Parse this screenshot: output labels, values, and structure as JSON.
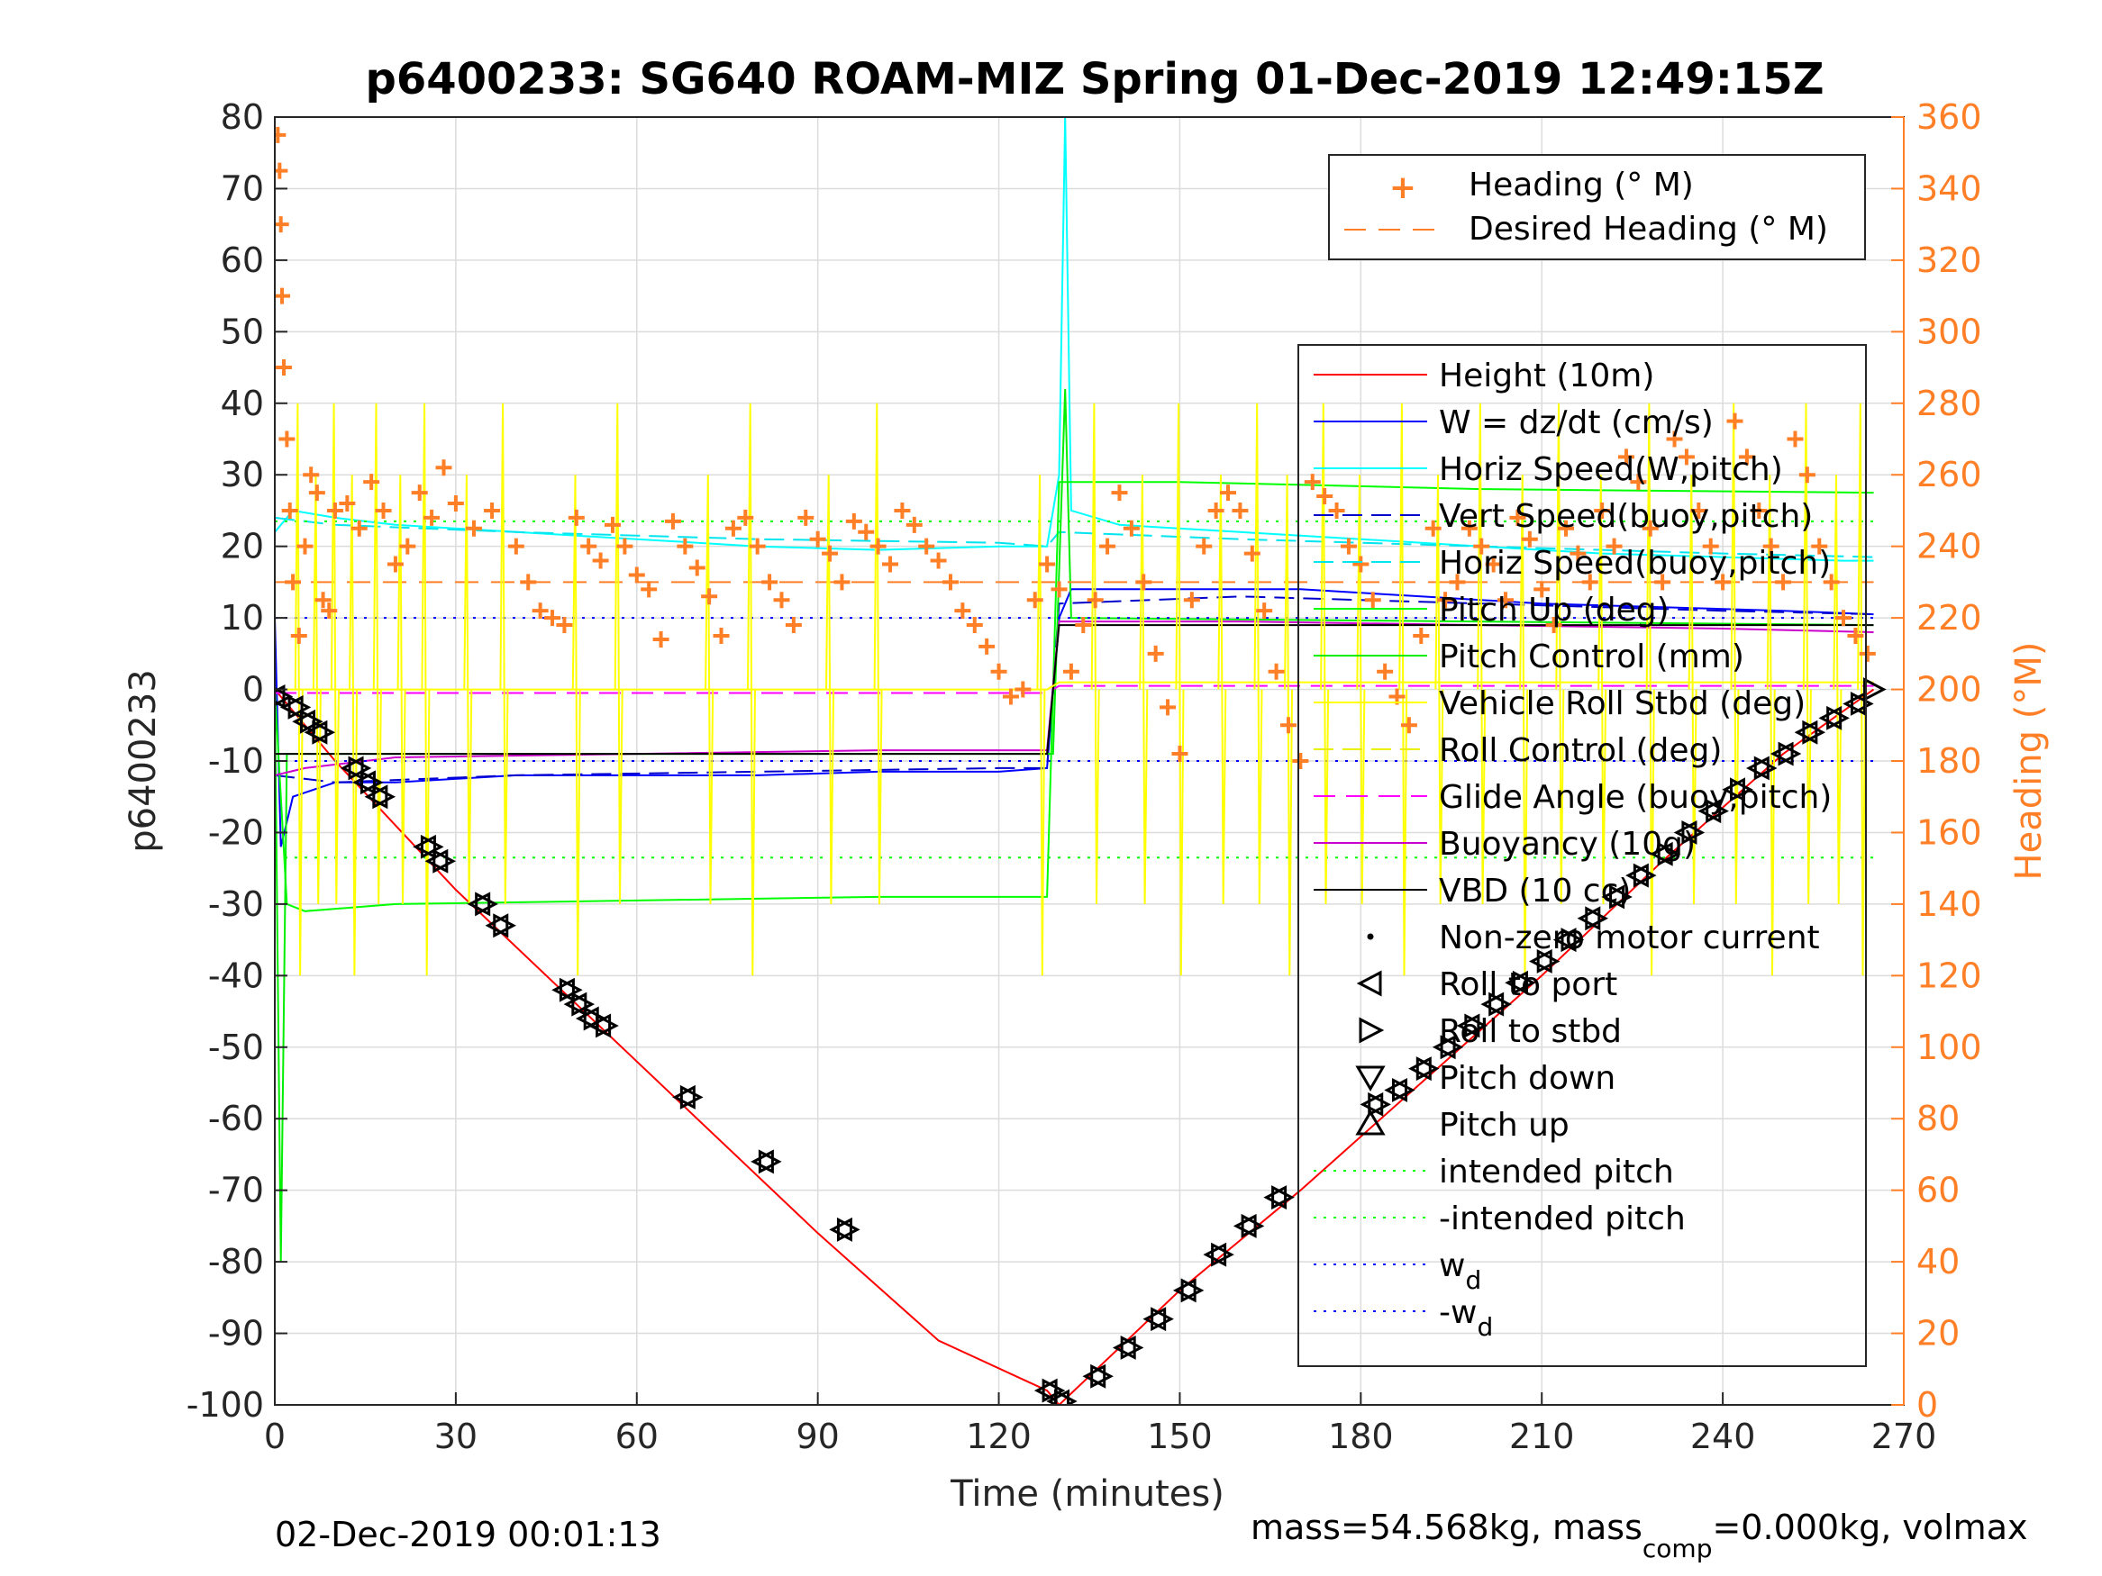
{
  "footer": {
    "timestamp": "02-Dec-2019 00:01:13",
    "mass_prefix": "mass=54.568kg, mass",
    "mass_sub": "comp",
    "mass_suffix": "=0.000kg, volmax"
  },
  "chart_data": {
    "type": "line",
    "title": "p6400233: SG640 ROAM-MIZ Spring 01-Dec-2019 12:49:15Z",
    "xlabel": "Time (minutes)",
    "ylabel_left": "p6400233",
    "ylabel_right": "Heading (°M)",
    "xlim": [
      0,
      270
    ],
    "ylim_left": [
      -100,
      80
    ],
    "ylim_right": [
      0,
      360
    ],
    "xticks": [
      "0",
      "30",
      "60",
      "90",
      "120",
      "150",
      "180",
      "210",
      "240",
      "270"
    ],
    "yticks_left": [
      "80",
      "70",
      "60",
      "50",
      "40",
      "30",
      "20",
      "10",
      "0",
      "-10",
      "-20",
      "-30",
      "-40",
      "-50",
      "-60",
      "-70",
      "-80",
      "-90",
      "-100"
    ],
    "yticks_right": [
      "360",
      "340",
      "320",
      "300",
      "280",
      "260",
      "240",
      "220",
      "200",
      "180",
      "160",
      "140",
      "120",
      "100",
      "80",
      "60",
      "40",
      "20",
      "0"
    ],
    "grid": true,
    "colors": {
      "height": "#ff0000",
      "w": "#0000ff",
      "horiz_w": "#00ffff",
      "vert_buoy": "#0000cd",
      "horiz_buoy": "#00e5ee",
      "pitch_up": "#00ff00",
      "pitch_control": "#00ee00",
      "roll": "#ffff00",
      "roll_control": "#eeee00",
      "glide": "#ff00ff",
      "buoyancy": "#cc00cc",
      "vbd": "#000000",
      "heading": "#ff7f27",
      "desired_heading": "#ff7f27",
      "intended_pitch": "#00ff00",
      "wd": "#0000ff"
    },
    "legend_heading": {
      "position": "top-right",
      "entries": [
        "Heading (° M)",
        "Desired Heading (° M)"
      ]
    },
    "legend_main": {
      "position": "right",
      "entries": [
        "Height (10m)",
        "W = dz/dt (cm/s)",
        "Horiz Speed(W,pitch)",
        "Vert Speed(buoy,pitch)",
        "Horiz Speed(buoy,pitch)",
        "Pitch Up (deg)",
        "Pitch Control (mm)",
        "Vehicle Roll Stbd (deg)",
        "Roll Control (deg)",
        "Glide Angle (buoy,pitch)",
        "Buoyancy (10g)",
        "VBD (10 cc)",
        "Non-zero motor current",
        "Roll to port",
        "Roll to stbd",
        "Pitch down",
        "Pitch up",
        "intended pitch",
        "-intended pitch",
        "w",
        "-w"
      ],
      "subscripts": {
        "w": "d",
        "-w": "d"
      }
    },
    "series": [
      {
        "name": "Height (10m)",
        "x": [
          0,
          10,
          30,
          60,
          90,
          110,
          128,
          130,
          150,
          170,
          190,
          210,
          230,
          250,
          265
        ],
        "y": [
          0,
          -10,
          -28,
          -52,
          -76,
          -91,
          -98,
          -100,
          -84,
          -70,
          -55,
          -40,
          -24,
          -9,
          0
        ]
      },
      {
        "name": "W = dz/dt (cm/s)",
        "x": [
          0,
          1,
          3,
          10,
          20,
          40,
          60,
          80,
          100,
          120,
          128,
          130,
          132,
          150,
          170,
          190,
          210,
          230,
          250,
          265
        ],
        "y": [
          10,
          -22,
          -15,
          -13,
          -13,
          -12,
          -12,
          -12,
          -11.5,
          -11.5,
          -11,
          10,
          14,
          14,
          14,
          13,
          12,
          11.5,
          11,
          10.5
        ]
      },
      {
        "name": "Horiz Speed(W,pitch)",
        "x": [
          0,
          3,
          10,
          20,
          40,
          60,
          80,
          100,
          120,
          128,
          130,
          131,
          132,
          140,
          160,
          180,
          200,
          220,
          240,
          260,
          265
        ],
        "y": [
          22,
          25,
          24,
          23,
          22,
          21,
          20,
          19.5,
          20,
          20,
          30,
          80,
          25,
          23,
          22,
          21,
          20,
          19,
          18.5,
          18,
          18
        ]
      },
      {
        "name": "Vert Speed(buoy,pitch)",
        "x": [
          0,
          10,
          40,
          80,
          120,
          128,
          130,
          160,
          200,
          240,
          265
        ],
        "y": [
          -12,
          -13,
          -12,
          -11.5,
          -11,
          -11,
          12,
          13,
          12,
          11,
          10.5
        ]
      },
      {
        "name": "Horiz Speed(buoy,pitch)",
        "x": [
          0,
          10,
          40,
          80,
          120,
          128,
          130,
          160,
          200,
          240,
          265
        ],
        "y": [
          24,
          23,
          22,
          21,
          20.5,
          20,
          22,
          21,
          20,
          19,
          18.5
        ]
      },
      {
        "name": "Pitch Up (deg)",
        "x": [
          0,
          2,
          5,
          20,
          60,
          100,
          128,
          130,
          150,
          200,
          265
        ],
        "y": [
          0,
          -30,
          -31,
          -30,
          -29.5,
          -29,
          -29,
          29,
          29,
          28,
          27.5
        ]
      },
      {
        "name": "Pitch Control (mm)",
        "x": [
          0,
          1,
          2,
          128,
          129,
          131,
          132,
          265
        ],
        "y": [
          0,
          -80,
          -9,
          -9,
          -9,
          42,
          10,
          9
        ]
      },
      {
        "name": "Glide Angle (buoy,pitch)",
        "x": [
          0,
          128,
          130,
          265
        ],
        "y": [
          -0.5,
          -0.5,
          0.5,
          0.5
        ]
      },
      {
        "name": "Buoyancy (10g)",
        "x": [
          0,
          5,
          20,
          60,
          100,
          128,
          130,
          160,
          200,
          240,
          265
        ],
        "y": [
          -12,
          -11,
          -9.5,
          -9,
          -8.5,
          -8.5,
          9.5,
          9.5,
          9,
          8.5,
          8
        ]
      },
      {
        "name": "VBD (10 cc)",
        "x": [
          0,
          3,
          128,
          130,
          265
        ],
        "y": [
          -9,
          -9,
          -9,
          9,
          9
        ]
      },
      {
        "name": "Desired Heading (° M)",
        "x": [
          0,
          265
        ],
        "y": [
          230,
          230
        ]
      },
      {
        "name": "intended pitch",
        "x": [
          0,
          265
        ],
        "y": [
          23.5,
          23.5
        ]
      },
      {
        "name": "-intended pitch",
        "x": [
          0,
          265
        ],
        "y": [
          -23.5,
          -23.5
        ]
      },
      {
        "name": "w",
        "x": [
          0,
          265
        ],
        "y": [
          10,
          10
        ]
      },
      {
        "name": "-w",
        "x": [
          0,
          265
        ],
        "y": [
          -10,
          -10
        ]
      }
    ],
    "heading_points": {
      "x": [
        0.5,
        0.8,
        1,
        1.2,
        1.5,
        2,
        2.5,
        3,
        4,
        5,
        6,
        7,
        8,
        9,
        10,
        12,
        14,
        16,
        18,
        20,
        22,
        24,
        26,
        28,
        30,
        33,
        36,
        40,
        42,
        44,
        46,
        48,
        50,
        52,
        54,
        56,
        58,
        60,
        62,
        64,
        66,
        68,
        70,
        72,
        74,
        76,
        78,
        80,
        82,
        84,
        86,
        88,
        90,
        92,
        94,
        96,
        98,
        100,
        102,
        104,
        106,
        108,
        110,
        112,
        114,
        116,
        118,
        120,
        122,
        124,
        126,
        128,
        130,
        132,
        134,
        136,
        138,
        140,
        142,
        144,
        146,
        148,
        150,
        152,
        154,
        156,
        158,
        160,
        162,
        164,
        166,
        168,
        170,
        172,
        174,
        176,
        178,
        180,
        182,
        184,
        186,
        188,
        190,
        192,
        194,
        196,
        198,
        200,
        202,
        204,
        206,
        208,
        210,
        212,
        214,
        216,
        218,
        220,
        222,
        224,
        226,
        228,
        230,
        232,
        234,
        236,
        238,
        240,
        242,
        244,
        246,
        248,
        250,
        252,
        254,
        256,
        258,
        260,
        262,
        264
      ],
      "y": [
        355,
        345,
        330,
        310,
        290,
        270,
        250,
        230,
        215,
        240,
        260,
        255,
        225,
        222,
        250,
        252,
        245,
        258,
        250,
        235,
        240,
        255,
        248,
        262,
        252,
        245,
        250,
        240,
        230,
        222,
        220,
        218,
        248,
        240,
        236,
        246,
        240,
        232,
        228,
        214,
        247,
        240,
        234,
        226,
        215,
        245,
        248,
        240,
        230,
        225,
        218,
        248,
        242,
        238,
        230,
        247,
        244,
        240,
        235,
        250,
        246,
        240,
        236,
        230,
        222,
        218,
        212,
        205,
        198,
        200,
        225,
        235,
        228,
        205,
        218,
        225,
        240,
        255,
        245,
        230,
        210,
        195,
        182,
        225,
        240,
        250,
        255,
        250,
        238,
        222,
        205,
        190,
        180,
        258,
        254,
        250,
        240,
        235,
        225,
        205,
        198,
        190,
        215,
        245,
        225,
        230,
        245,
        240,
        235,
        225,
        248,
        242,
        228,
        218,
        245,
        238,
        230,
        250,
        240,
        265,
        258,
        245,
        230,
        270,
        265,
        250,
        240,
        230,
        275,
        265,
        250,
        240,
        230,
        270,
        260,
        240,
        230,
        220,
        215,
        210
      ]
    },
    "markers": {
      "roll_port_x": [
        0,
        3,
        5,
        7,
        13,
        15,
        17,
        25,
        27,
        34,
        37,
        48,
        50,
        52,
        54,
        68,
        81,
        94,
        128,
        130,
        136,
        141,
        146,
        151,
        156,
        161,
        166,
        182,
        186,
        190,
        194,
        198,
        202,
        206,
        210,
        214,
        218,
        222,
        226,
        230,
        234,
        238,
        242,
        246,
        250,
        254,
        258,
        262
      ],
      "roll_port_y": [
        -1,
        -2.5,
        -4.5,
        -6,
        -11,
        -13,
        -15,
        -22,
        -24,
        -30,
        -33,
        -42,
        -44,
        -46,
        -47,
        -57,
        -66,
        -75.5,
        -98,
        -99.5,
        -96,
        -92,
        -88,
        -84,
        -79,
        -75,
        -71,
        -58,
        -56,
        -53,
        -50,
        -47,
        -44,
        -41,
        -38,
        -35,
        -32,
        -29,
        -26,
        -23,
        -20,
        -17,
        -14,
        -11,
        -9,
        -6,
        -4,
        -2
      ],
      "roll_stbd_x": [
        265
      ],
      "roll_stbd_y": [
        0
      ]
    },
    "legend_heading_label_0": "Heading (° M)",
    "legend_heading_label_1": "Desired Heading (° M)"
  }
}
